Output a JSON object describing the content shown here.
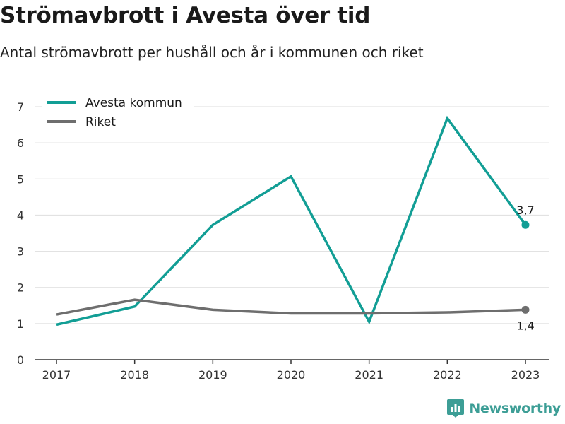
{
  "header": {
    "title": "Strömavbrott i Avesta över tid",
    "subtitle": "Antal strömavbrott per hushåll och år i kommunen och riket"
  },
  "brand": {
    "name": "Newsworthy",
    "color": "#3d9e96",
    "icon": "newsworthy-logo-icon"
  },
  "chart_data": {
    "type": "line",
    "title": "Strömavbrott i Avesta över tid",
    "subtitle": "Antal strömavbrott per hushåll och år i kommunen och riket",
    "xlabel": "",
    "ylabel": "",
    "categories": [
      "2017",
      "2018",
      "2019",
      "2020",
      "2021",
      "2022",
      "2023"
    ],
    "ylim": [
      0,
      7
    ],
    "yticks": [
      "0",
      "1",
      "2",
      "3",
      "4",
      "5",
      "6",
      "7"
    ],
    "grid": true,
    "legend_position": "top-left",
    "series": [
      {
        "name": "Avesta kommun",
        "color": "#129e95",
        "values": [
          0.97,
          1.47,
          3.73,
          5.07,
          1.05,
          6.68,
          3.73
        ],
        "end_label": "3,7"
      },
      {
        "name": "Riket",
        "color": "#6e6e6e",
        "values": [
          1.25,
          1.66,
          1.38,
          1.28,
          1.28,
          1.31,
          1.38
        ],
        "end_label": "1,4"
      }
    ]
  }
}
